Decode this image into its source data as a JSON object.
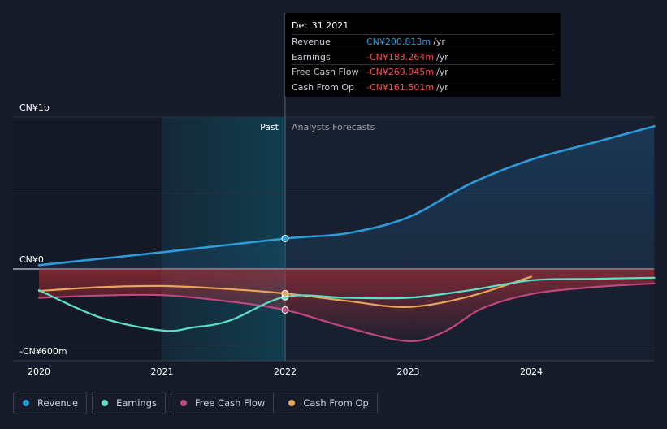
{
  "colors": {
    "revenue": "#2d9cdb",
    "earnings": "#5de0c9",
    "free_cash_flow": "#c2477e",
    "cash_from_op": "#e8a65c",
    "negative": "#ff4d4f",
    "background": "#151b28"
  },
  "tooltip": {
    "date": "Dec 31 2021",
    "rows": [
      {
        "label": "Revenue",
        "value": "CN¥200.813m",
        "unit": "/yr"
      },
      {
        "label": "Earnings",
        "value": "-CN¥183.264m",
        "unit": "/yr"
      },
      {
        "label": "Free Cash Flow",
        "value": "-CN¥269.945m",
        "unit": "/yr"
      },
      {
        "label": "Cash From Op",
        "value": "-CN¥161.501m",
        "unit": "/yr"
      }
    ]
  },
  "labels": {
    "past": "Past",
    "forecasts": "Analysts Forecasts"
  },
  "chart_data": {
    "type": "line",
    "y_unit": "CN¥m",
    "ylim": [
      -600,
      1000
    ],
    "xlim": [
      2020,
      2025.0
    ],
    "y_tick_labels": [
      {
        "value": 1000,
        "label": "CN¥1b"
      },
      {
        "value": 0,
        "label": "CN¥0"
      },
      {
        "value": -600,
        "label": "-CN¥600m"
      }
    ],
    "x_ticks": [
      {
        "value": 2020,
        "label": "2020"
      },
      {
        "value": 2021,
        "label": "2021"
      },
      {
        "value": 2022,
        "label": "2022"
      },
      {
        "value": 2023,
        "label": "2023"
      },
      {
        "value": 2024,
        "label": "2024"
      }
    ],
    "past_start": 2021,
    "past_end": 2022,
    "series": [
      {
        "name": "Revenue",
        "key": "revenue",
        "points": [
          [
            2020,
            25
          ],
          [
            2021,
            110
          ],
          [
            2022,
            200.8
          ],
          [
            2022.5,
            235
          ],
          [
            2023,
            340
          ],
          [
            2023.5,
            560
          ],
          [
            2024,
            720
          ],
          [
            2024.5,
            830
          ],
          [
            2025,
            940
          ]
        ]
      },
      {
        "name": "Earnings",
        "key": "earnings",
        "points": [
          [
            2020,
            -140
          ],
          [
            2020.5,
            -320
          ],
          [
            2021,
            -405
          ],
          [
            2021.25,
            -385
          ],
          [
            2021.55,
            -340
          ],
          [
            2022,
            -183.3
          ],
          [
            2022.5,
            -190
          ],
          [
            2023,
            -190
          ],
          [
            2023.5,
            -140
          ],
          [
            2024,
            -75
          ],
          [
            2024.5,
            -65
          ],
          [
            2025,
            -58
          ]
        ]
      },
      {
        "name": "Free Cash Flow",
        "key": "free_cash_flow",
        "points": [
          [
            2020,
            -190
          ],
          [
            2020.5,
            -175
          ],
          [
            2021,
            -172
          ],
          [
            2021.5,
            -210
          ],
          [
            2022,
            -269.9
          ],
          [
            2022.5,
            -385
          ],
          [
            2023,
            -475
          ],
          [
            2023.3,
            -410
          ],
          [
            2023.6,
            -260
          ],
          [
            2024,
            -165
          ],
          [
            2024.5,
            -120
          ],
          [
            2025,
            -95
          ]
        ]
      },
      {
        "name": "Cash From Op",
        "key": "cash_from_op",
        "points": [
          [
            2020,
            -145
          ],
          [
            2020.5,
            -120
          ],
          [
            2021,
            -112
          ],
          [
            2021.5,
            -130
          ],
          [
            2022,
            -161.5
          ],
          [
            2022.5,
            -210
          ],
          [
            2023,
            -250
          ],
          [
            2023.5,
            -180
          ],
          [
            2024,
            -50
          ]
        ]
      }
    ],
    "highlight_x": 2022,
    "grid": true,
    "legend_position": "bottom-left"
  },
  "legend": [
    {
      "label": "Revenue",
      "key": "revenue"
    },
    {
      "label": "Earnings",
      "key": "earnings"
    },
    {
      "label": "Free Cash Flow",
      "key": "free_cash_flow"
    },
    {
      "label": "Cash From Op",
      "key": "cash_from_op"
    }
  ]
}
